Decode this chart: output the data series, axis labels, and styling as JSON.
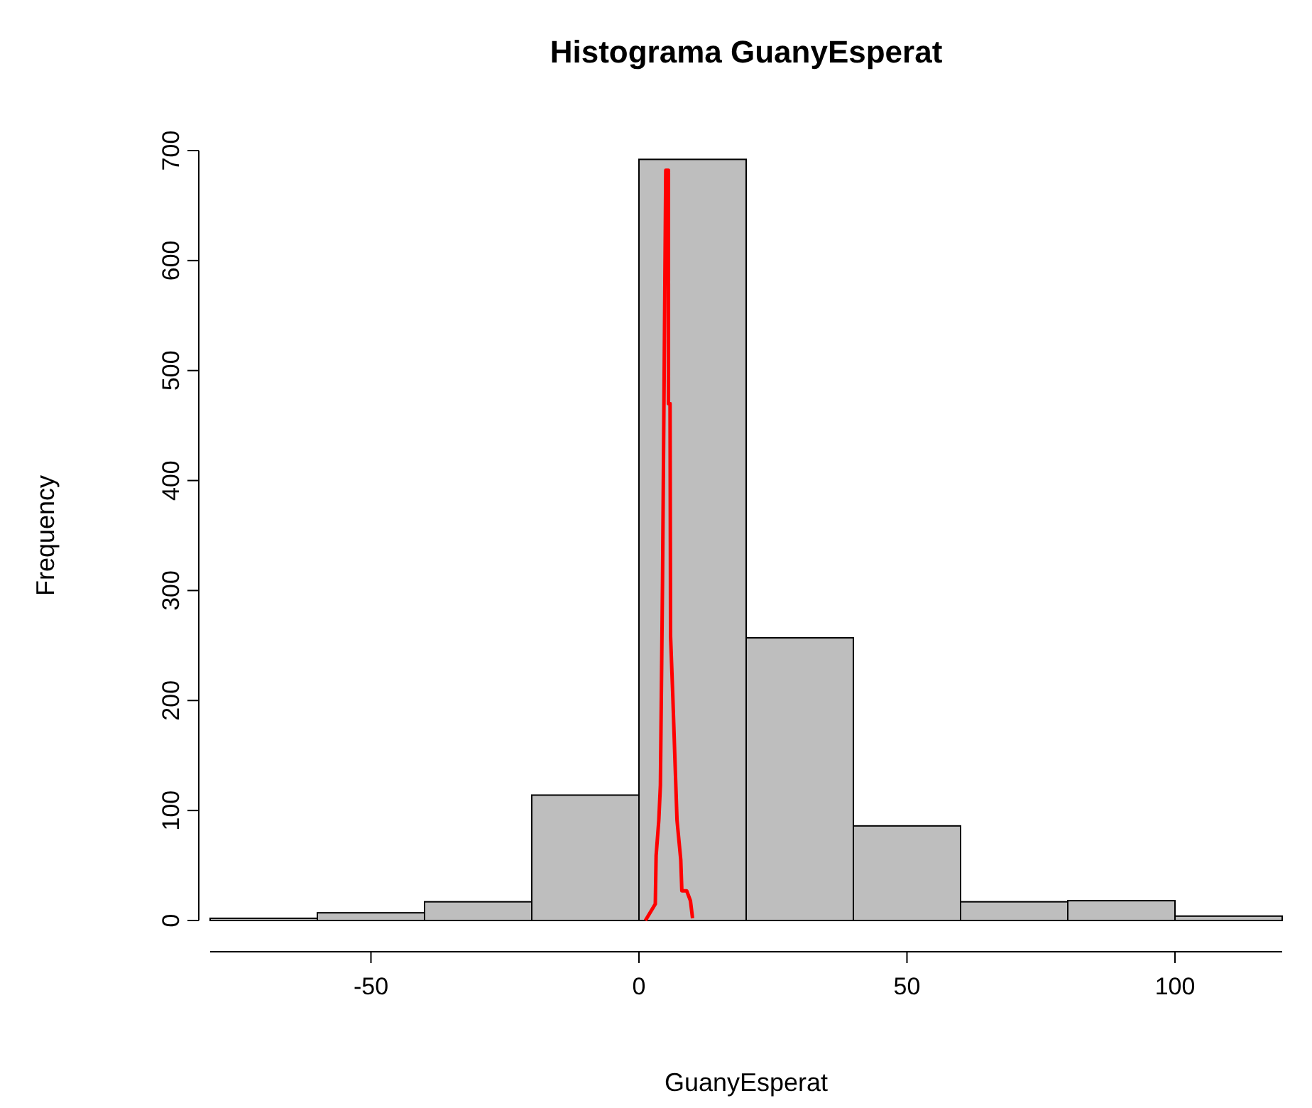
{
  "chart_data": {
    "type": "histogram",
    "title": "Histograma GuanyEsperat",
    "xlabel": "GuanyEsperat",
    "ylabel": "Frequency",
    "bins": [
      -80,
      -60,
      -40,
      -20,
      0,
      20,
      40,
      60,
      80,
      100,
      120
    ],
    "values": [
      2,
      7,
      17,
      114,
      692,
      257,
      86,
      17,
      18,
      4
    ],
    "color": "#bebebe",
    "series": [
      {
        "type": "line",
        "color": "#ff0000",
        "x": [
          1.2,
          3.05,
          3.2,
          3.7,
          4.0,
          4.4,
          4.7,
          5.0,
          5.5,
          5.5,
          5.8,
          5.9,
          6.3,
          6.7,
          7.1,
          7.8,
          8.0,
          8.9,
          9.6,
          10.0
        ],
        "values": [
          0,
          15,
          59,
          91,
          123,
          310,
          495,
          682,
          682,
          470,
          470,
          258,
          206,
          148,
          91,
          55,
          27,
          27,
          18,
          2
        ]
      }
    ],
    "xlim": [
      -80,
      120
    ],
    "xticks": [
      -50,
      0,
      50,
      100
    ],
    "ylim": [
      0,
      700
    ],
    "yticks": [
      0,
      100,
      200,
      300,
      400,
      500,
      600,
      700
    ],
    "grid": false
  }
}
